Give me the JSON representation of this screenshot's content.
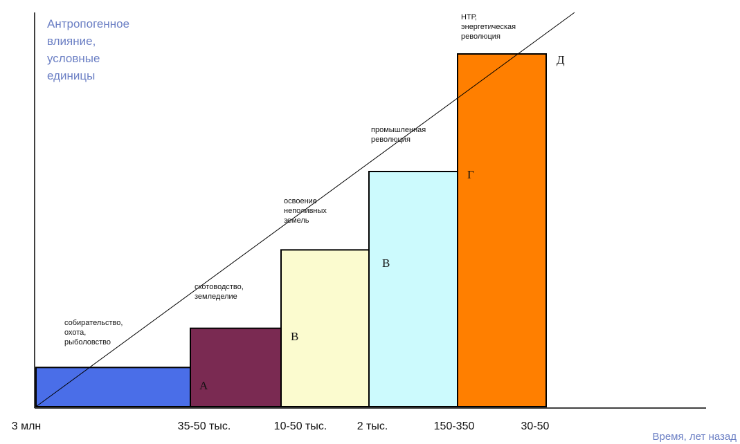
{
  "chart_data": {
    "type": "bar",
    "title": "",
    "ylabel_lines": [
      "Антропогенное",
      "влияние,",
      "условные",
      "единицы"
    ],
    "xlabel": "Время, лет назад",
    "x_ticks": [
      "3 млн",
      "35-50 тыс.",
      "10-50 тыс.",
      "2 тыс.",
      "150-350",
      "30-50"
    ],
    "steps": [
      {
        "name": "собирательство, охота, рыболовство",
        "label_lines": [
          "собирательство,",
          "охота,",
          "рыболовство"
        ],
        "value": 1,
        "color": "#4a6ee8"
      },
      {
        "name": "скотоводство, земледелие",
        "label_lines": [
          "скотоводство,",
          "земледелие"
        ],
        "value": 2,
        "color": "#7a2a52"
      },
      {
        "name": "освоение неполивных земель",
        "label_lines": [
          "освоение",
          "неполивных",
          "земель"
        ],
        "value": 4,
        "color": "#fbfbcf"
      },
      {
        "name": "промышленная революция",
        "label_lines": [
          "промышленная",
          "революция"
        ],
        "value": 6,
        "color": "#ccfafd"
      },
      {
        "name": "НТР, энергетическая революция",
        "label_lines": [
          "НТР,",
          "энергетическая",
          "революция"
        ],
        "value": 9,
        "color": "#ff7f00"
      }
    ],
    "line_points": [
      {
        "label": "А",
        "value": 1
      },
      {
        "label": "В",
        "value": 2
      },
      {
        "label": "В",
        "value": 4
      },
      {
        "label": "Г",
        "value": 6
      },
      {
        "label": "Д",
        "value": 9
      }
    ],
    "ylim": [
      0,
      9
    ],
    "grid": false,
    "legend": "none"
  }
}
